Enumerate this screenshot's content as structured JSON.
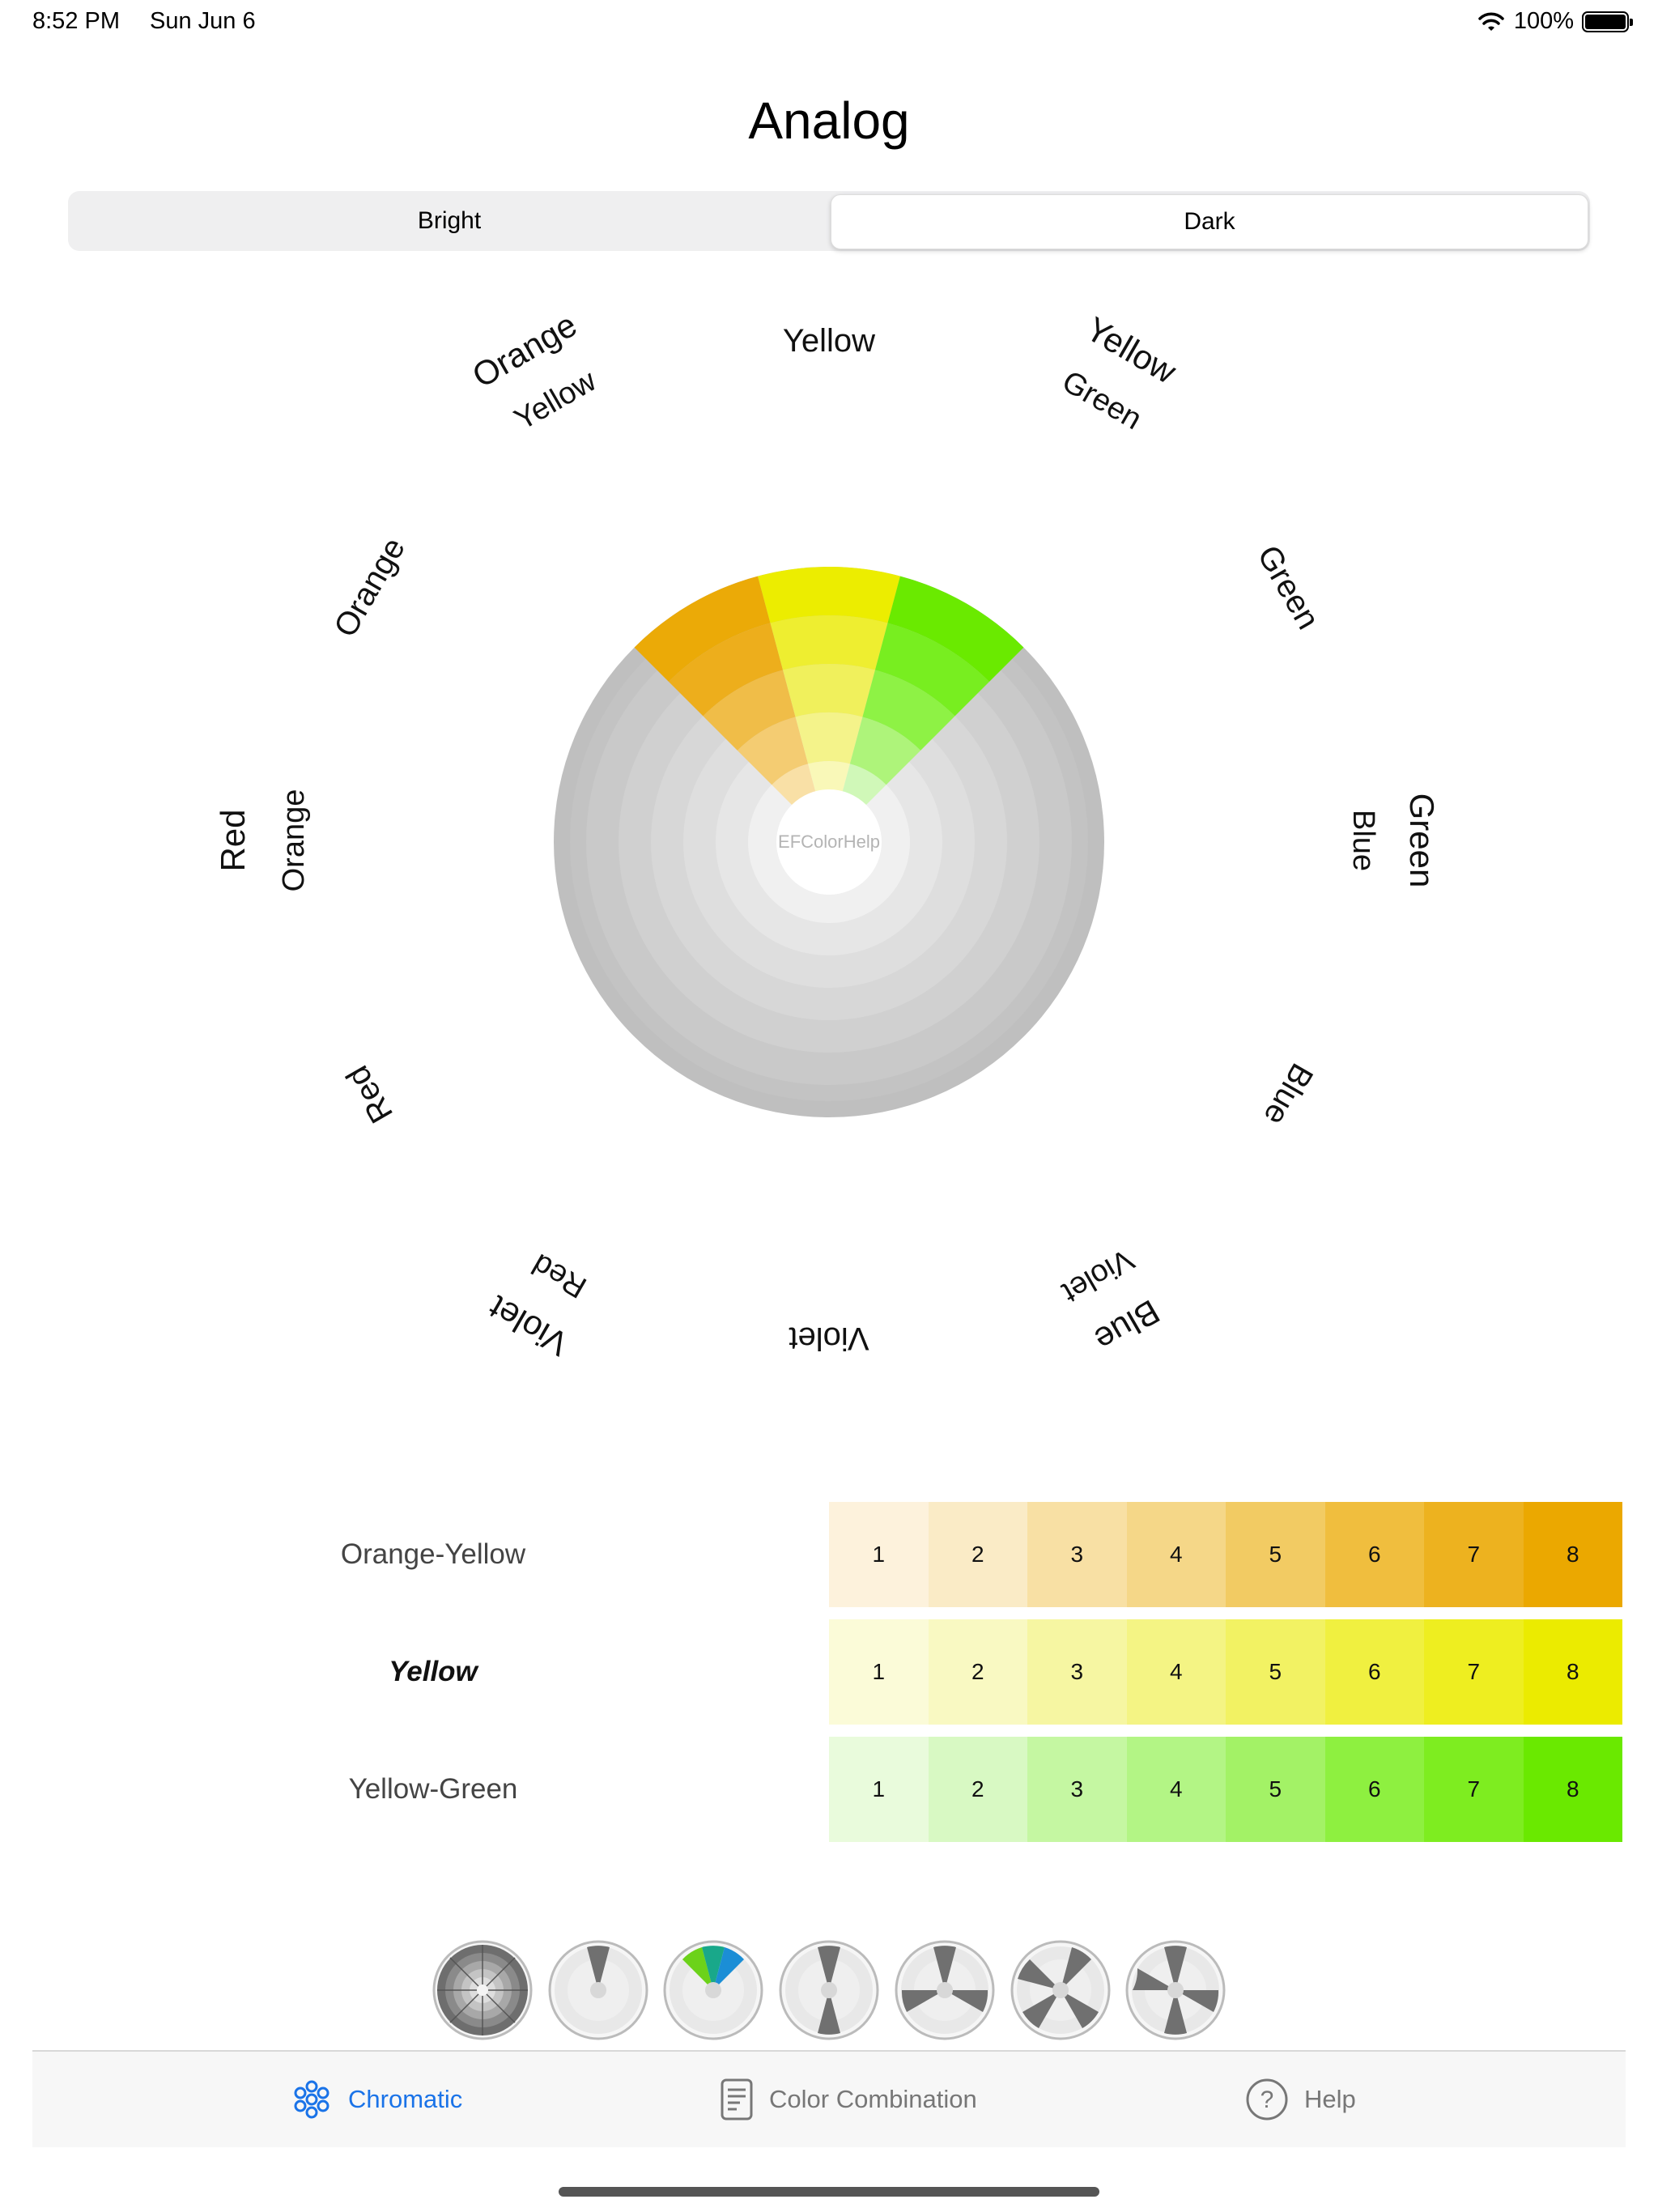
{
  "status_bar": {
    "time": "8:52 PM",
    "date": "Sun Jun 6",
    "battery": "100%",
    "wifi_icon": "wifi-icon",
    "battery_icon": "battery-full-icon"
  },
  "title": "Analog",
  "segmented": {
    "options": [
      "Bright",
      "Dark"
    ],
    "selected": "Dark"
  },
  "wheel": {
    "center_label": "EFColorHelp",
    "labels": {
      "yellow": "Yellow",
      "yellow_green_1": "Yellow",
      "yellow_green_2": "Green",
      "green": "Green",
      "green_blue_1": "Green",
      "green_blue_2": "Blue",
      "blue": "Blue",
      "blue_violet_1": "Blue",
      "blue_violet_2": "Violet",
      "violet": "Violet",
      "violet_red_1": "Violet",
      "violet_red_2": "Red",
      "red": "Red",
      "red_orange_1": "Red",
      "red_orange_2": "Orange",
      "orange": "Orange",
      "orange_yellow_1": "Orange",
      "orange_yellow_2": "Yellow"
    },
    "highlight_colors": {
      "orange_yellow": [
        "#f9e0a6",
        "#f4cc72",
        "#f0bd48",
        "#edae1c",
        "#ebaa07"
      ],
      "yellow": [
        "#f9f8b8",
        "#f4f38a",
        "#f0f05c",
        "#eeee30",
        "#eced00"
      ],
      "yellow_green": [
        "#d0f8b8",
        "#aef47a",
        "#8ef245",
        "#78ee20",
        "#6aea00"
      ]
    },
    "gray_colors": [
      "#f0f0f0",
      "#e6e6e6",
      "#dedede",
      "#d7d7d7",
      "#d0d0d0",
      "#c9c9c9",
      "#c3c3c3",
      "#bfbfbf"
    ]
  },
  "table": {
    "rows": [
      {
        "label": "Orange-Yellow",
        "current": false,
        "steps": [
          "1",
          "2",
          "3",
          "4",
          "5",
          "6",
          "7",
          "8"
        ],
        "colors": [
          "#fdf2dc",
          "#faebc6",
          "#f8e0a4",
          "#f5d788",
          "#f2cb63",
          "#f0be3e",
          "#edb21f",
          "#eba800"
        ]
      },
      {
        "label": "Yellow",
        "current": true,
        "steps": [
          "1",
          "2",
          "3",
          "4",
          "5",
          "6",
          "7",
          "8"
        ],
        "colors": [
          "#fbfbd8",
          "#f9f9c2",
          "#f6f6a2",
          "#f4f484",
          "#f2f263",
          "#f0f040",
          "#eeee20",
          "#ebeb00"
        ]
      },
      {
        "label": "Yellow-Green",
        "current": false,
        "steps": [
          "1",
          "2",
          "3",
          "4",
          "5",
          "6",
          "7",
          "8"
        ],
        "colors": [
          "#e9fbdc",
          "#d8f9c3",
          "#c5f7a2",
          "#b3f585",
          "#a3f266",
          "#8ef040",
          "#7eed20",
          "#6ae900"
        ]
      }
    ]
  },
  "thumbnails": [
    "monochrome-wheel-icon",
    "complementary-wheel-icon",
    "analog-wheel-icon",
    "triad-wheel-icon",
    "split-complementary-wheel-icon",
    "square-wheel-icon",
    "tetrad-wheel-icon"
  ],
  "tabbar": {
    "tabs": [
      {
        "label": "Chromatic",
        "icon": "flower-icon",
        "active": true
      },
      {
        "label": "Color Combination",
        "icon": "document-icon",
        "active": false
      },
      {
        "label": "Help",
        "icon": "question-circle-icon",
        "active": false
      }
    ]
  }
}
